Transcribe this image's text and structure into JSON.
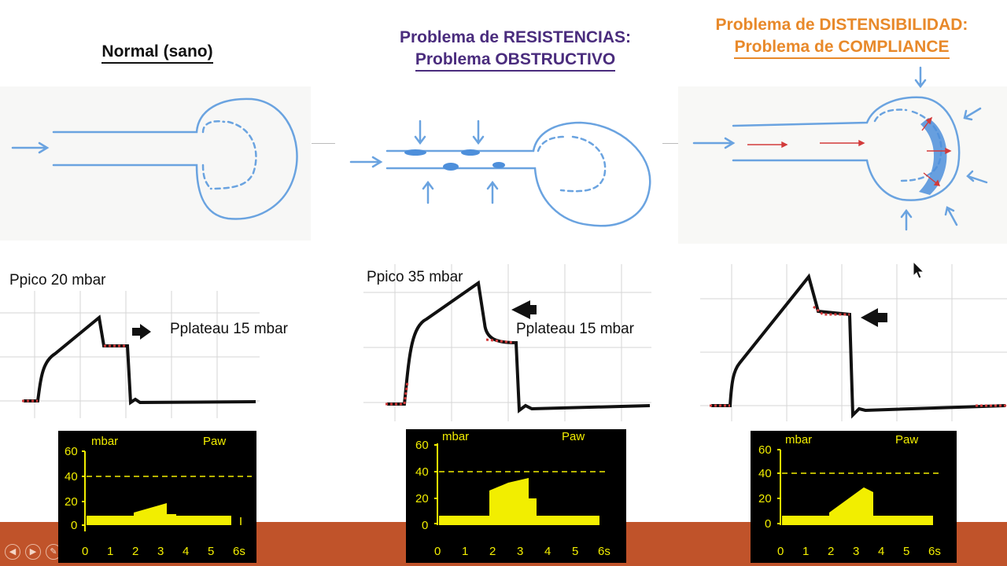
{
  "columns": [
    {
      "title_lines": [
        "Normal (sano)"
      ],
      "title_color": "#111111",
      "ppico_label": "Ppico 20 mbar",
      "pplateau_label": "Pplateau 15 mbar",
      "monitor": {
        "unit": "mbar",
        "signal": "Paw",
        "y_ticks": [
          "60",
          "40",
          "20",
          "0"
        ],
        "x_ticks": [
          "0",
          "1",
          "2",
          "3",
          "4",
          "5",
          "6s"
        ]
      }
    },
    {
      "title_lines": [
        "Problema de RESISTENCIAS:",
        "Problema OBSTRUCTIVO"
      ],
      "title_color": "#4a2c7d",
      "ppico_label": "Ppico 35 mbar",
      "pplateau_label": "Pplateau 15 mbar",
      "monitor": {
        "unit": "mbar",
        "signal": "Paw",
        "y_ticks": [
          "60",
          "40",
          "20",
          "0"
        ],
        "x_ticks": [
          "0",
          "1",
          "2",
          "3",
          "4",
          "5",
          "6s"
        ]
      }
    },
    {
      "title_lines": [
        "Problema de DISTENSIBILIDAD:",
        "Problema de COMPLIANCE"
      ],
      "title_color": "#e8892a",
      "monitor": {
        "unit": "mbar",
        "signal": "Paw",
        "y_ticks": [
          "60",
          "40",
          "20",
          "0"
        ],
        "x_ticks": [
          "0",
          "1",
          "2",
          "3",
          "4",
          "5",
          "6s"
        ]
      }
    }
  ],
  "colors": {
    "sketch_blue": "#6aa3e0",
    "arrow_red": "#d23a3a",
    "curve": "#111111",
    "monitor_fill": "#f2ee00",
    "footer": "#c0532a"
  },
  "nav_icons": [
    "play-left-icon",
    "play-right-icon",
    "pen-icon",
    "screen-icon",
    "zoom-icon",
    "menu-icon"
  ]
}
